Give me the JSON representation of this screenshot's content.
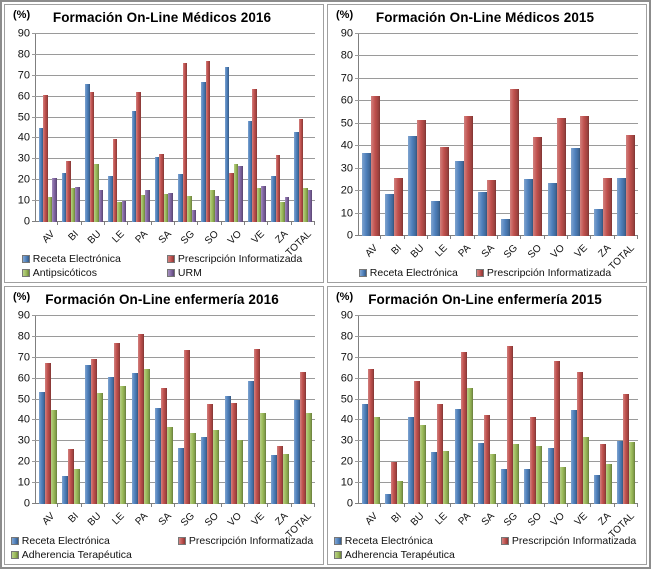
{
  "frame": {
    "background": "#ffffff",
    "border_color": "#8c8c8c"
  },
  "colors": {
    "series_blue": "#4f81bd",
    "series_red": "#c0504d",
    "series_green": "#9bbb59",
    "series_purple": "#8064a2",
    "gridline": "#9a9a9a",
    "axis": "#7f7f7f"
  },
  "chart_data": [
    {
      "type": "bar",
      "title": "Formación On-Line Médicos 2016",
      "unit_label": "(%)",
      "ylim": [
        0,
        90
      ],
      "ytick_step": 10,
      "grid": true,
      "legend_position": "bottom",
      "categories": [
        "AV",
        "BI",
        "BU",
        "LE",
        "PA",
        "SA",
        "SG",
        "SO",
        "VO",
        "VE",
        "ZA",
        "TOTAL"
      ],
      "series": [
        {
          "name": "Receta Electrónica",
          "color": "#4f81bd",
          "values": [
            45,
            23.5,
            66,
            22,
            53,
            31,
            23,
            67,
            74,
            48.5,
            22,
            43
          ]
        },
        {
          "name": "Prescripción Informatizada",
          "color": "#c0504d",
          "values": [
            61,
            29,
            62,
            39.5,
            62,
            32.5,
            76,
            77,
            23.5,
            63.5,
            32,
            49.5
          ]
        },
        {
          "name": "Antipsicóticos",
          "color": "#9bbb59",
          "values": [
            12,
            16,
            27.5,
            9.5,
            13,
            13.5,
            12.5,
            15.5,
            27.5,
            16,
            9.5,
            16
          ]
        },
        {
          "name": "URM",
          "color": "#8064a2",
          "values": [
            21,
            16.5,
            15.5,
            10,
            15.5,
            14,
            5.5,
            12.5,
            27,
            17,
            12,
            15.5
          ]
        }
      ]
    },
    {
      "type": "bar",
      "title": "Formación On-Line Médicos 2015",
      "unit_label": "(%)",
      "ylim": [
        0,
        90
      ],
      "ytick_step": 10,
      "grid": true,
      "legend_position": "bottom",
      "categories": [
        "AV",
        "BI",
        "BU",
        "LE",
        "PA",
        "SA",
        "SG",
        "SO",
        "VO",
        "VE",
        "ZA",
        "TOTAL"
      ],
      "series": [
        {
          "name": "Receta Electrónica",
          "color": "#4f81bd",
          "values": [
            37,
            18.5,
            44.5,
            15.5,
            33.5,
            19.5,
            7.5,
            25.5,
            23.5,
            39,
            12,
            26
          ]
        },
        {
          "name": "Prescripción Informatizada",
          "color": "#c0504d",
          "values": [
            62.5,
            26,
            51.5,
            39.5,
            53.5,
            25,
            65.5,
            44,
            52.5,
            53.5,
            26,
            45
          ]
        }
      ]
    },
    {
      "type": "bar",
      "title": "Formación On-Line enfermería 2016",
      "unit_label": "(%)",
      "ylim": [
        0,
        90
      ],
      "ytick_step": 10,
      "grid": true,
      "legend_position": "bottom",
      "categories": [
        "AV",
        "BI",
        "BU",
        "LE",
        "PA",
        "SA",
        "SG",
        "SO",
        "VO",
        "VE",
        "ZA",
        "TOTAL"
      ],
      "series": [
        {
          "name": "Receta Electrónica",
          "color": "#4f81bd",
          "values": [
            53.5,
            13.5,
            66.5,
            61,
            62.5,
            46,
            27,
            32,
            51.5,
            59,
            23.5,
            50
          ]
        },
        {
          "name": "Prescripción Informatizada",
          "color": "#c0504d",
          "values": [
            67.5,
            26.5,
            69.5,
            77,
            81.5,
            55.5,
            73.5,
            48,
            48.5,
            74,
            27.5,
            63
          ]
        },
        {
          "name": "Adherencia Terapéutica",
          "color": "#9bbb59",
          "values": [
            45,
            16.5,
            53,
            56.5,
            64.5,
            37,
            34,
            35.5,
            30.5,
            43.5,
            24,
            43.5
          ]
        }
      ]
    },
    {
      "type": "bar",
      "title": "Formación On-Line enfermería 2015",
      "unit_label": "(%)",
      "ylim": [
        0,
        90
      ],
      "ytick_step": 10,
      "grid": true,
      "legend_position": "bottom",
      "categories": [
        "AV",
        "BI",
        "BU",
        "LE",
        "PA",
        "SA",
        "SG",
        "SO",
        "VO",
        "VE",
        "ZA",
        "TOTAL"
      ],
      "series": [
        {
          "name": "Receta Electrónica",
          "color": "#4f81bd",
          "values": [
            48,
            4.5,
            41.5,
            25,
            45.5,
            29,
            16.5,
            16.5,
            27,
            45,
            14,
            30
          ]
        },
        {
          "name": "Prescripción Informatizada",
          "color": "#c0504d",
          "values": [
            64.5,
            20,
            59,
            48,
            73,
            42.5,
            75.5,
            41.5,
            68.5,
            63,
            28.5,
            52.5
          ]
        },
        {
          "name": "Adherencia Terapéutica",
          "color": "#9bbb59",
          "values": [
            41.5,
            11,
            38,
            25.5,
            55.5,
            24,
            28.5,
            27.5,
            17.5,
            32,
            19,
            29.5
          ]
        }
      ]
    }
  ]
}
